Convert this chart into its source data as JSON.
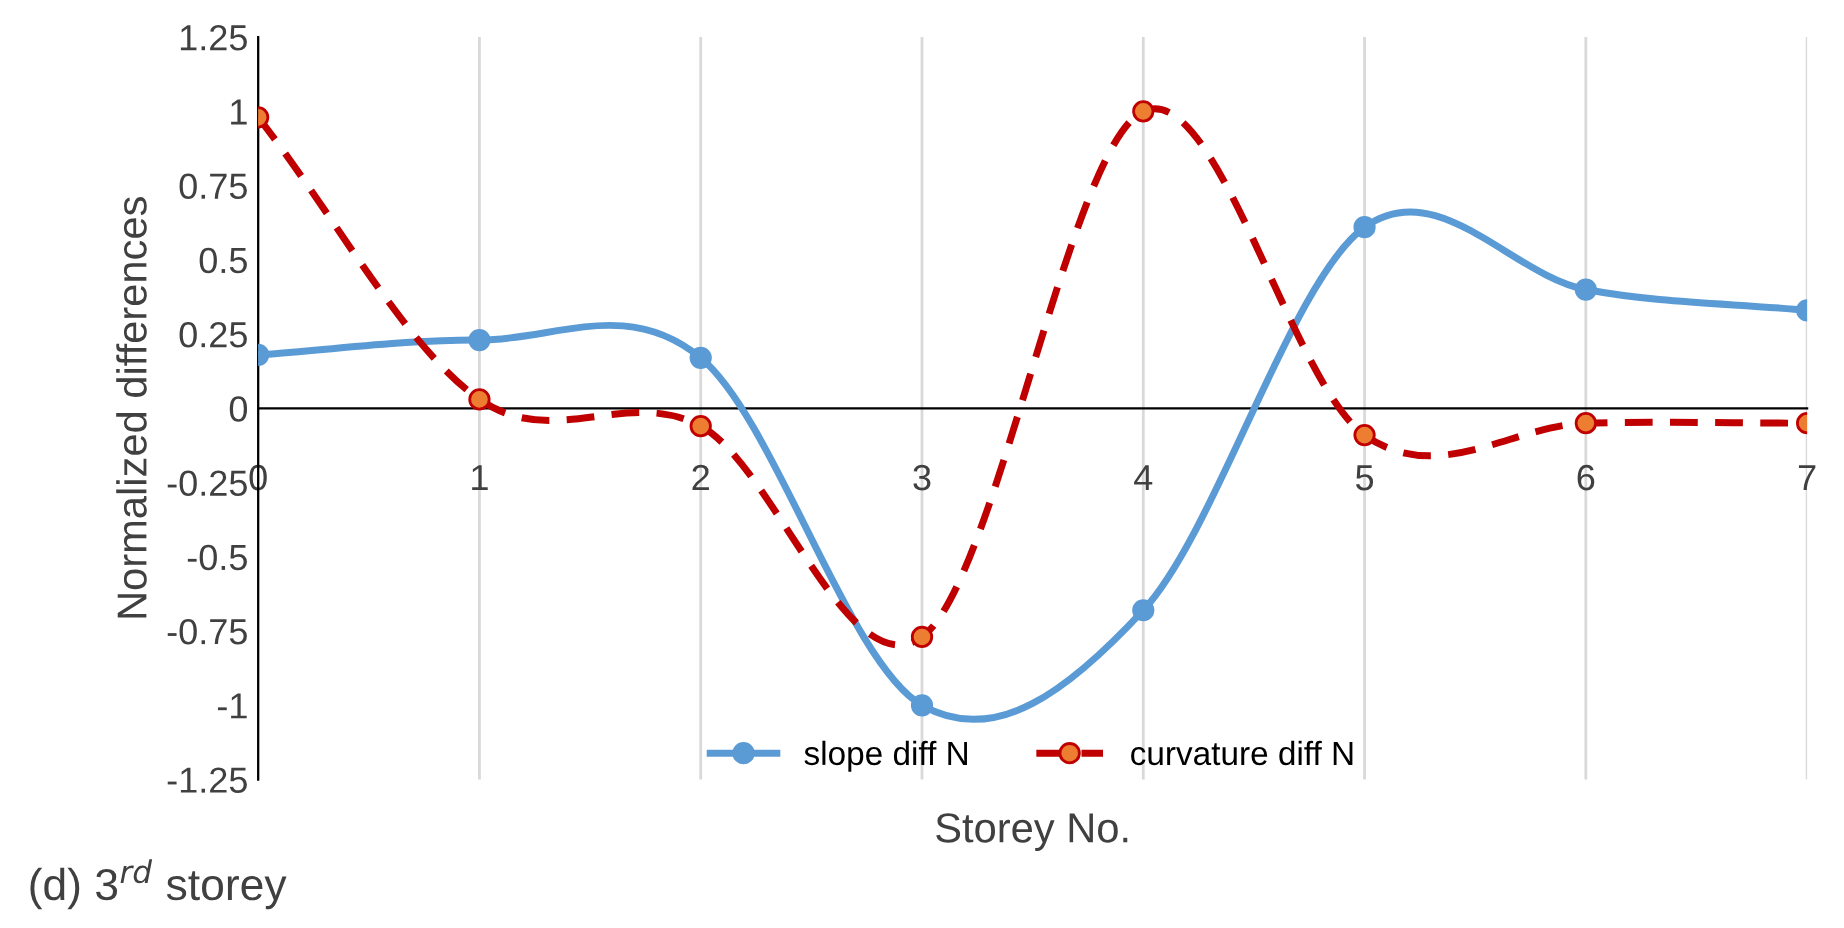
{
  "chart_data": {
    "type": "line",
    "xlabel": "Storey No.",
    "ylabel": "Normalized differences",
    "x": [
      0,
      1,
      2,
      3,
      4,
      5,
      6,
      7
    ],
    "series": [
      {
        "name": "slope diff N",
        "color": "#5b9bd5",
        "line_style": "solid",
        "marker": "circle",
        "values": [
          0.18,
          0.23,
          0.17,
          -1.0,
          -0.68,
          0.61,
          0.4,
          0.33
        ]
      },
      {
        "name": "curvature diff N",
        "color": "#c00000",
        "line_style": "dashed",
        "marker": "circle",
        "values": [
          0.98,
          0.03,
          -0.06,
          -0.77,
          1.0,
          -0.09,
          -0.05,
          -0.05
        ]
      }
    ],
    "xlim": [
      0,
      7
    ],
    "xticks": [
      0,
      1,
      2,
      3,
      4,
      5,
      6,
      7
    ],
    "ylim": [
      -1.25,
      1.25
    ],
    "yticks": [
      1.25,
      1,
      0.75,
      0.5,
      0.25,
      0,
      -0.25,
      -0.5,
      -0.75,
      -1,
      -1.25
    ],
    "grid": "x",
    "legend": "bottom",
    "annotations": [
      "(d) 3$^{rd}$ storey"
    ]
  }
}
